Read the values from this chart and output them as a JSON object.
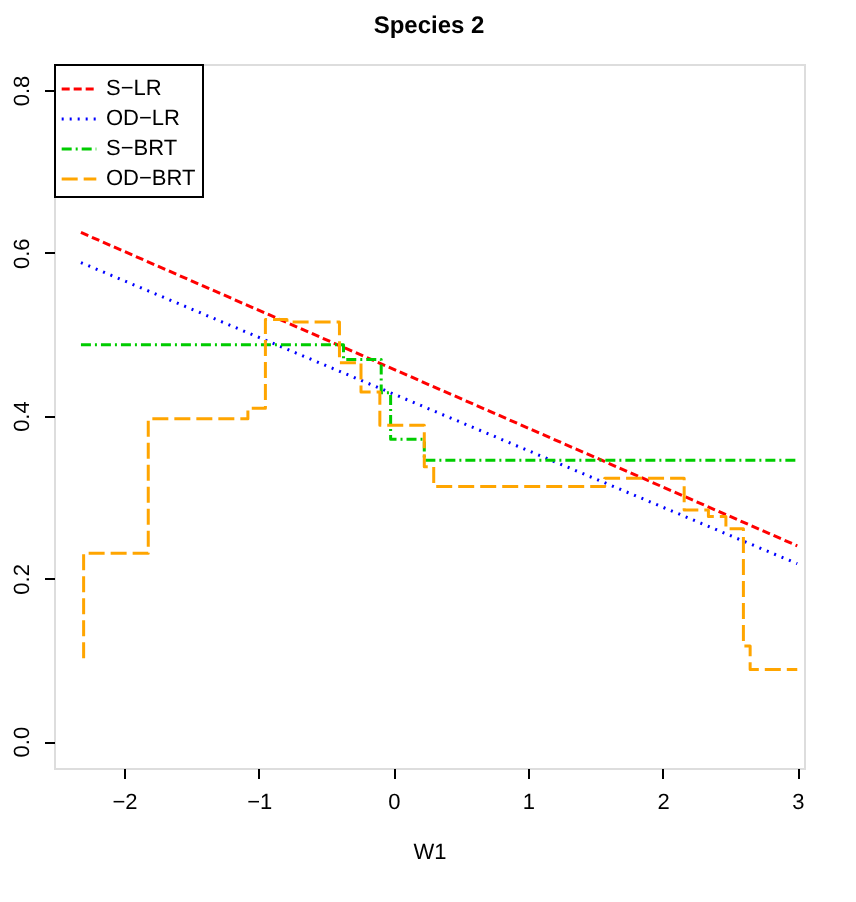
{
  "chart_data": {
    "type": "line",
    "title": "Species 2",
    "xlabel": "W1",
    "xlim": [
      -2.52,
      3.05
    ],
    "ylim": [
      -0.033,
      0.832
    ],
    "xticks": [
      {
        "value": -2,
        "label": "−2"
      },
      {
        "value": -1,
        "label": "−1"
      },
      0,
      1,
      2,
      3
    ],
    "yticks": [
      {
        "value": 0,
        "label": "0.0"
      },
      0.2,
      0.4,
      0.6,
      0.8
    ],
    "grid": false,
    "legend": "top left",
    "marker": "none",
    "series": [
      {
        "name": "S−LR",
        "color": "#ff0000",
        "line_style": "dashed",
        "type": "line",
        "x": [
          -2.32,
          3.0
        ],
        "values": [
          0.625,
          0.24
        ]
      },
      {
        "name": "OD−LR",
        "color": "#0000ff",
        "line_style": "dotted",
        "type": "line",
        "x": [
          -2.32,
          3.0
        ],
        "values": [
          0.588,
          0.218
        ]
      },
      {
        "name": "S−BRT",
        "color": "#00cc00",
        "line_style": "dashdot",
        "type": "step",
        "x": [
          -2.32,
          -0.37,
          -0.09,
          -0.02,
          0.23,
          3.0
        ],
        "values": [
          0.487,
          0.469,
          0.428,
          0.371,
          0.345,
          0.345
        ]
      },
      {
        "name": "OD−BRT",
        "color": "#ffa500",
        "line_style": "longdash",
        "type": "step",
        "x": [
          -2.3,
          -2.3,
          -1.82,
          -1.08,
          -0.95,
          -0.79,
          -0.4,
          -0.24,
          -0.1,
          0.23,
          0.3,
          1.57,
          2.16,
          2.34,
          2.47,
          2.6,
          2.65,
          3.0
        ],
        "values": [
          0.102,
          0.231,
          0.396,
          0.409,
          0.518,
          0.515,
          0.465,
          0.429,
          0.388,
          0.337,
          0.313,
          0.323,
          0.284,
          0.276,
          0.261,
          0.117,
          0.088,
          0.088
        ]
      }
    ]
  }
}
